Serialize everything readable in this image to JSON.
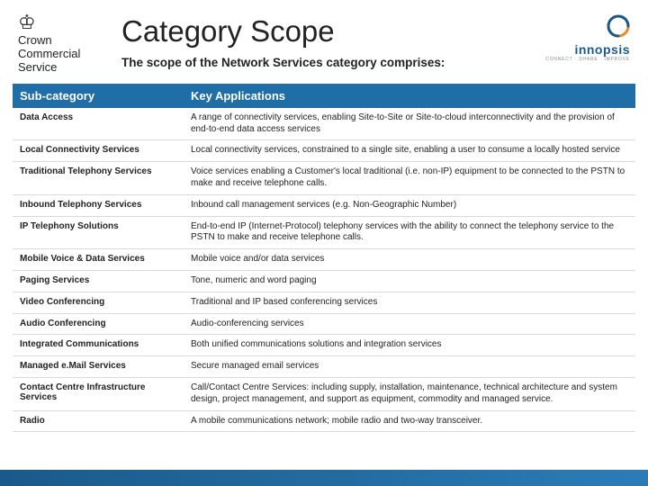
{
  "header": {
    "ccs_line1": "Crown",
    "ccs_line2": "Commercial",
    "ccs_line3": "Service",
    "title": "Category Scope",
    "subtitle": "The scope of the Network Services category comprises:",
    "innopsis_name": "innopsis",
    "innopsis_tag": "CONNECT · SHARE · IMPROVE"
  },
  "table": {
    "header_col1": "Sub-category",
    "header_col2": "Key Applications",
    "header_bg": "#1f6ea8",
    "header_text_color": "#ffffff",
    "rows": [
      {
        "sub": "Data Access",
        "desc": "A range of connectivity services, enabling Site-to-Site or Site-to-cloud interconnectivity and the provision of end-to-end data access services"
      },
      {
        "sub": "Local Connectivity Services",
        "desc": "Local connectivity services, constrained to a single site, enabling a user to consume a locally hosted service"
      },
      {
        "sub": "Traditional Telephony Services",
        "desc": "Voice services enabling a Customer's local traditional (i.e. non-IP) equipment to be connected to the PSTN to make and receive telephone calls."
      },
      {
        "sub": "Inbound Telephony Services",
        "desc": "Inbound call management services (e.g. Non-Geographic Number)"
      },
      {
        "sub": "IP Telephony Solutions",
        "desc": "End-to-end IP (Internet-Protocol) telephony services with the ability to connect the telephony service to the PSTN to make and receive telephone calls."
      },
      {
        "sub": "Mobile Voice & Data Services",
        "desc": "Mobile voice and/or data services"
      },
      {
        "sub": "Paging Services",
        "desc": "Tone, numeric and word paging"
      },
      {
        "sub": "Video Conferencing",
        "desc": "Traditional and IP based conferencing services"
      },
      {
        "sub": "Audio Conferencing",
        "desc": "Audio-conferencing services"
      },
      {
        "sub": "Integrated Communications",
        "desc": "Both unified communications solutions and integration services"
      },
      {
        "sub": "Managed e.Mail Services",
        "desc": "Secure managed email services"
      },
      {
        "sub": "Contact Centre Infrastructure Services",
        "desc": "Call/Contact Centre Services: including supply, installation, maintenance, technical architecture and system design, project management, and support as equipment, commodity and managed service."
      },
      {
        "sub": "Radio",
        "desc": "A mobile communications network; mobile radio and two-way transceiver."
      }
    ]
  },
  "colors": {
    "footer_gradient_start": "#1a5a8a",
    "footer_gradient_end": "#2a7cb8",
    "innopsis_orange": "#e98a2b",
    "innopsis_blue": "#1a5a8a"
  }
}
